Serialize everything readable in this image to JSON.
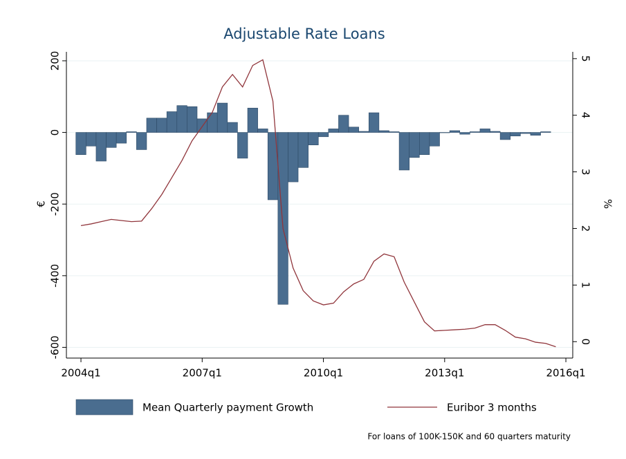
{
  "chart_data": {
    "type": "bar-line",
    "title": "Adjustable Rate Loans",
    "ytitle": "€",
    "y2title": "%",
    "note": "For loans of 100K-150K and 60 quarters maturity",
    "x": [
      2004,
      2004.25,
      2004.5,
      2004.75,
      2005,
      2005.25,
      2005.5,
      2005.75,
      2006,
      2006.25,
      2006.5,
      2006.75,
      2007,
      2007.25,
      2007.5,
      2007.75,
      2008,
      2008.25,
      2008.5,
      2008.75,
      2009,
      2009.25,
      2009.5,
      2009.75,
      2010,
      2010.25,
      2010.5,
      2010.75,
      2011,
      2011.25,
      2011.5,
      2011.75,
      2012,
      2012.25,
      2012.5,
      2012.75,
      2013,
      2013.25,
      2013.5,
      2013.75,
      2014,
      2014.25,
      2014.5,
      2014.75,
      2015,
      2015.25,
      2015.5,
      2015.75
    ],
    "series": [
      {
        "name": "Mean Quarterly payment Growth",
        "type": "bar",
        "color": "#4a6d8f",
        "values": [
          -62,
          -38,
          -80,
          -42,
          -30,
          2,
          -48,
          40,
          40,
          58,
          75,
          72,
          38,
          55,
          82,
          28,
          -72,
          68,
          10,
          -188,
          -480,
          -138,
          -98,
          -35,
          -12,
          10,
          48,
          15,
          3,
          55,
          5,
          2,
          -105,
          -70,
          -62,
          -38,
          0,
          5,
          -5,
          2,
          10,
          3,
          -20,
          -10,
          -3,
          -8,
          2,
          null
        ]
      },
      {
        "name": "Euribor 3 months",
        "type": "line",
        "color": "#90353b",
        "axis": "y2",
        "values": [
          2.05,
          2.08,
          2.12,
          2.16,
          2.14,
          2.12,
          2.13,
          2.35,
          2.6,
          2.9,
          3.2,
          3.55,
          3.8,
          4.05,
          4.5,
          4.72,
          4.5,
          4.88,
          4.98,
          4.25,
          2.0,
          1.3,
          0.9,
          0.72,
          0.65,
          0.68,
          0.88,
          1.02,
          1.1,
          1.42,
          1.55,
          1.5,
          1.05,
          0.7,
          0.35,
          0.19,
          0.2,
          0.21,
          0.22,
          0.24,
          0.3,
          0.3,
          0.2,
          0.08,
          0.05,
          -0.01,
          -0.03,
          -0.09
        ]
      }
    ],
    "xlim": [
      2003.64,
      2016.17
    ],
    "xticks": [
      {
        "value": 2004,
        "label": "2004q1"
      },
      {
        "value": 2007,
        "label": "2007q1"
      },
      {
        "value": 2010,
        "label": "2010q1"
      },
      {
        "value": 2013,
        "label": "2013q1"
      },
      {
        "value": 2016,
        "label": "2016q1"
      }
    ],
    "ylim": [
      -630,
      225
    ],
    "yticks": [
      -600,
      -400,
      -200,
      0,
      200
    ],
    "y2lim": [
      -0.29,
      5.12
    ],
    "y2ticks": [
      0,
      1,
      2,
      3,
      4,
      5
    ],
    "grid": true
  }
}
